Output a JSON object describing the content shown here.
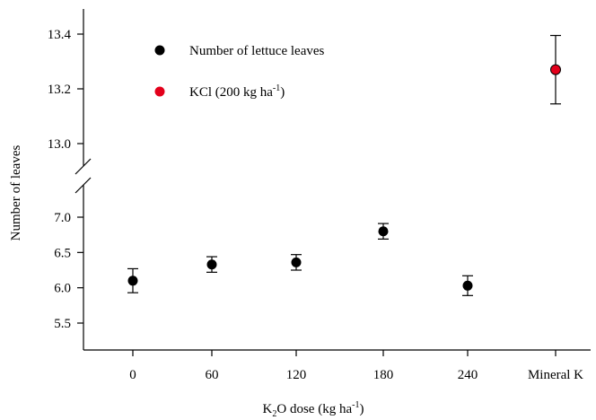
{
  "chart_data": {
    "type": "scatter",
    "title": "",
    "xlabel": "K2O dose (kg ha-1)",
    "xlabel_parts": {
      "k": "K",
      "sub": "2",
      "rest": "O dose (kg ha",
      "sup": "-1",
      "close": ")"
    },
    "ylabel": "Number of leaves",
    "categories": [
      "0",
      "60",
      "120",
      "180",
      "240",
      "Mineral K"
    ],
    "y_axis_segments": [
      {
        "range": [
          5.2,
          7.2
        ],
        "ticks": [
          "5.5",
          "6.0",
          "6.5",
          "7.0"
        ]
      },
      {
        "range": [
          12.9,
          13.5
        ],
        "ticks": [
          "13.0",
          "13.2",
          "13.4"
        ]
      }
    ],
    "axis_break": true,
    "grid": false,
    "legend_position": "top-left",
    "series": [
      {
        "name": "Number of lettuce leaves",
        "color": "#000000",
        "points": [
          {
            "x": "0",
            "y": 6.1,
            "err": 0.17
          },
          {
            "x": "60",
            "y": 6.33,
            "err": 0.11
          },
          {
            "x": "120",
            "y": 6.36,
            "err": 0.11
          },
          {
            "x": "180",
            "y": 6.8,
            "err": 0.11
          },
          {
            "x": "240",
            "y": 6.03,
            "err": 0.14
          }
        ]
      },
      {
        "name": "KCl (200 kg ha-1)",
        "name_parts": {
          "main": "KCl (200 kg ha",
          "sup": "-1",
          "close": ")"
        },
        "color": "#e3001b",
        "points": [
          {
            "x": "Mineral K",
            "y": 13.27,
            "err": 0.125
          }
        ]
      }
    ]
  }
}
